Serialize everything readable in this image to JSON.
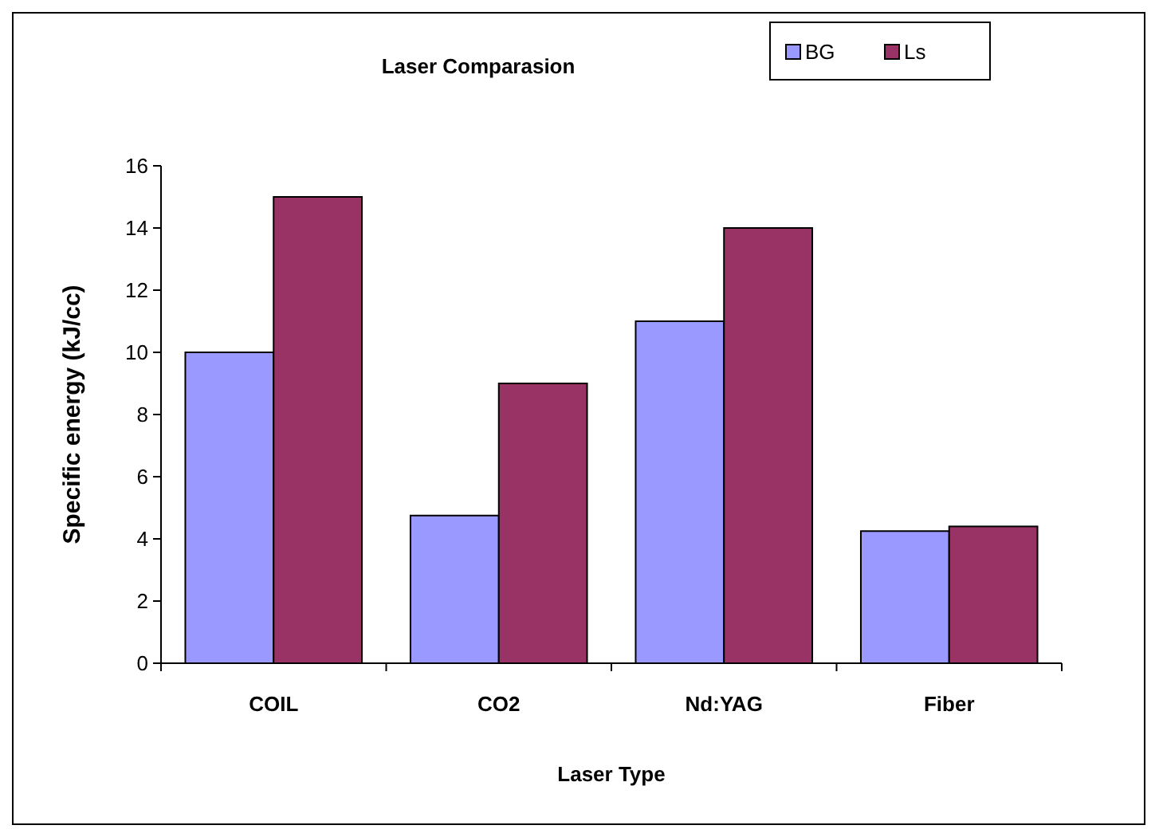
{
  "chart_data": {
    "type": "bar",
    "title": "Laser Comparasion",
    "xlabel": "Laser Type",
    "ylabel": "Specific energy (kJ/cc)",
    "categories": [
      "COIL",
      "CO2",
      "Nd:YAG",
      "Fiber"
    ],
    "series": [
      {
        "name": "BG",
        "color": "#9999ff",
        "values": [
          10,
          4.75,
          11,
          4.25
        ]
      },
      {
        "name": "Ls",
        "color": "#993366",
        "values": [
          15,
          9,
          14,
          4.4
        ]
      }
    ],
    "ylim": [
      0,
      16
    ],
    "yticks": [
      0,
      2,
      4,
      6,
      8,
      10,
      12,
      14,
      16
    ],
    "grid": false,
    "legend": "top right"
  }
}
